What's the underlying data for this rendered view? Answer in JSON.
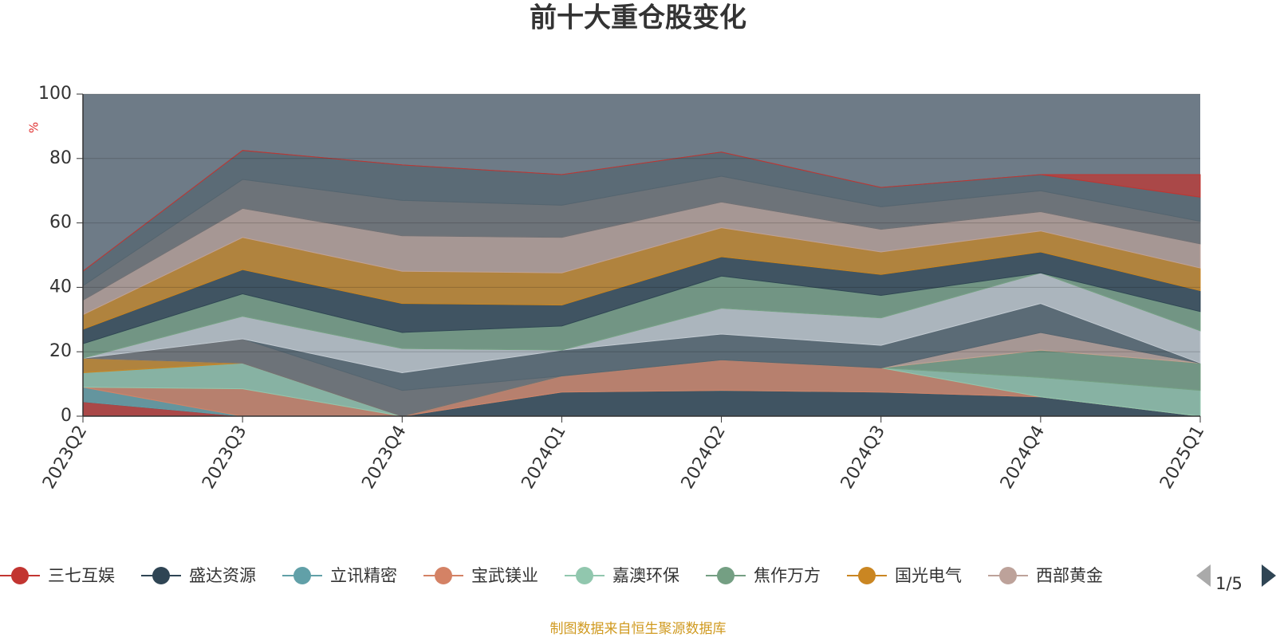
{
  "chart_data": {
    "type": "stacked_area",
    "title": "前十大重仓股变化",
    "y_unit": "%",
    "categories": [
      "2023Q2",
      "2023Q3",
      "2023Q4",
      "2024Q1",
      "2024Q2",
      "2024Q3",
      "2024Q4",
      "2025Q1"
    ],
    "ylim": [
      0,
      100
    ],
    "yticks": [
      0,
      20,
      40,
      60,
      80,
      100
    ],
    "grid": true,
    "plot_background": "#6e7b87",
    "series": [
      {
        "name": "三七互娱",
        "color": "#c23531",
        "values": [
          4.5,
          0,
          0,
          0,
          0,
          0,
          0,
          0
        ]
      },
      {
        "name": "盛达资源",
        "color": "#2f4554",
        "values": [
          0,
          0,
          0,
          7.5,
          8,
          7.5,
          6,
          0
        ]
      },
      {
        "name": "立讯精密",
        "color": "#61a0a8",
        "values": [
          4.5,
          0,
          0,
          0,
          0,
          0,
          0,
          0
        ]
      },
      {
        "name": "宝武镁业",
        "color": "#d48265",
        "values": [
          0,
          8.5,
          0,
          5,
          9.5,
          7.5,
          0,
          0
        ]
      },
      {
        "name": "嘉澳环保",
        "color": "#91c7ae",
        "values": [
          4.5,
          8,
          0,
          0,
          0,
          0,
          6,
          8
        ]
      },
      {
        "name": "焦作万方",
        "color": "#749f83",
        "values": [
          0,
          0,
          0,
          0,
          0,
          0,
          8.5,
          8.5
        ]
      },
      {
        "name": "国光电气",
        "color": "#ca8622",
        "values": [
          4.5,
          0,
          0,
          0,
          0,
          0,
          0,
          0
        ]
      },
      {
        "name": "西部黄金",
        "color": "#bda29a",
        "values": [
          0,
          0,
          0,
          0,
          0,
          0,
          5.5,
          0
        ]
      },
      {
        "color": "#6e7074",
        "values": [
          0,
          7.5,
          8,
          0,
          0,
          0,
          0,
          0
        ]
      },
      {
        "color": "#546570",
        "values": [
          0,
          0,
          5.5,
          8,
          8,
          7,
          9,
          0
        ]
      },
      {
        "color": "#c4ccd3",
        "values": [
          0,
          7,
          7.5,
          0,
          8,
          8.5,
          9.5,
          10
        ]
      },
      {
        "color": "#749f83",
        "values": [
          4.5,
          7,
          5,
          7.5,
          10,
          7,
          0,
          6
        ]
      },
      {
        "color": "#2f4554",
        "values": [
          4.5,
          7.5,
          9,
          6.5,
          6,
          6.5,
          6.5,
          6.5
        ]
      },
      {
        "color": "#ca8622",
        "values": [
          4.5,
          10,
          10,
          10,
          9,
          7,
          6.5,
          7
        ]
      },
      {
        "color": "#bda29a",
        "values": [
          4.5,
          9,
          11,
          11,
          8,
          7,
          6,
          7.5
        ]
      },
      {
        "color": "#6e7074",
        "values": [
          4.5,
          9,
          11,
          10,
          8,
          7,
          6.5,
          7
        ]
      },
      {
        "color": "#546570",
        "values": [
          4.5,
          9,
          11,
          9.5,
          7.5,
          6,
          5,
          7.5
        ]
      },
      {
        "color": "#c23531",
        "values": [
          0,
          0,
          0,
          0,
          0,
          0,
          0,
          7
        ]
      }
    ],
    "legend_page": "1/5",
    "source": "制图数据来自恒生聚源数据库"
  }
}
